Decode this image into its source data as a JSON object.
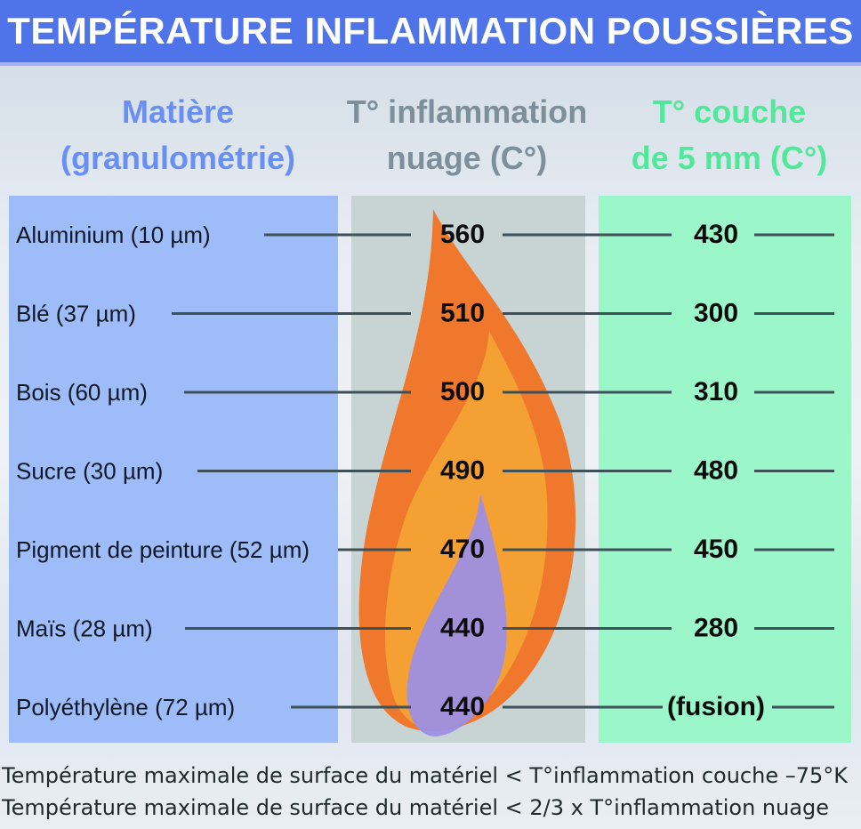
{
  "title": "TEMPÉRATURE INFLAMMATION POUSSIÈRES",
  "headers": {
    "material": [
      "Matière",
      "(granulométrie)"
    ],
    "cloud": [
      "T° inflammation",
      "nuage (C°)"
    ],
    "layer": [
      "T° couche",
      "de 5 mm (C°)"
    ]
  },
  "colors": {
    "banner": "#4f73e8",
    "material_header": "#6a8ff2",
    "cloud_header": "#7d8f9a",
    "layer_header": "#52e79a",
    "material_panel": "#9ebcf7",
    "cloud_panel": "#c8d3d4",
    "layer_panel": "#9bf7c9",
    "flame_outer": "#f0782d",
    "flame_middle": "#f5a033",
    "flame_inner": "#9a8ee6"
  },
  "chart_data": {
    "type": "table",
    "columns": [
      "Matière (granulométrie)",
      "T° inflammation nuage (C°)",
      "T° couche de 5 mm (C°)"
    ],
    "rows": [
      {
        "material": "Aluminium (10 µm)",
        "cloud": "560",
        "layer": "430"
      },
      {
        "material": "Blé (37 µm)",
        "cloud": "510",
        "layer": "300"
      },
      {
        "material": "Bois (60 µm)",
        "cloud": "500",
        "layer": "310"
      },
      {
        "material": "Sucre (30 µm)",
        "cloud": "490",
        "layer": "480"
      },
      {
        "material": "Pigment de peinture (52 µm)",
        "cloud": "470",
        "layer": "450"
      },
      {
        "material": "Maïs (28 µm)",
        "cloud": "440",
        "layer": "280"
      },
      {
        "material": "Polyéthylène (72 µm)",
        "cloud": "440",
        "layer": "(fusion)"
      }
    ]
  },
  "footer": [
    "Température maximale de surface du matériel < T°inflammation couche –75°K",
    "Température maximale de surface du matériel < 2/3 x T°inflammation nuage"
  ]
}
